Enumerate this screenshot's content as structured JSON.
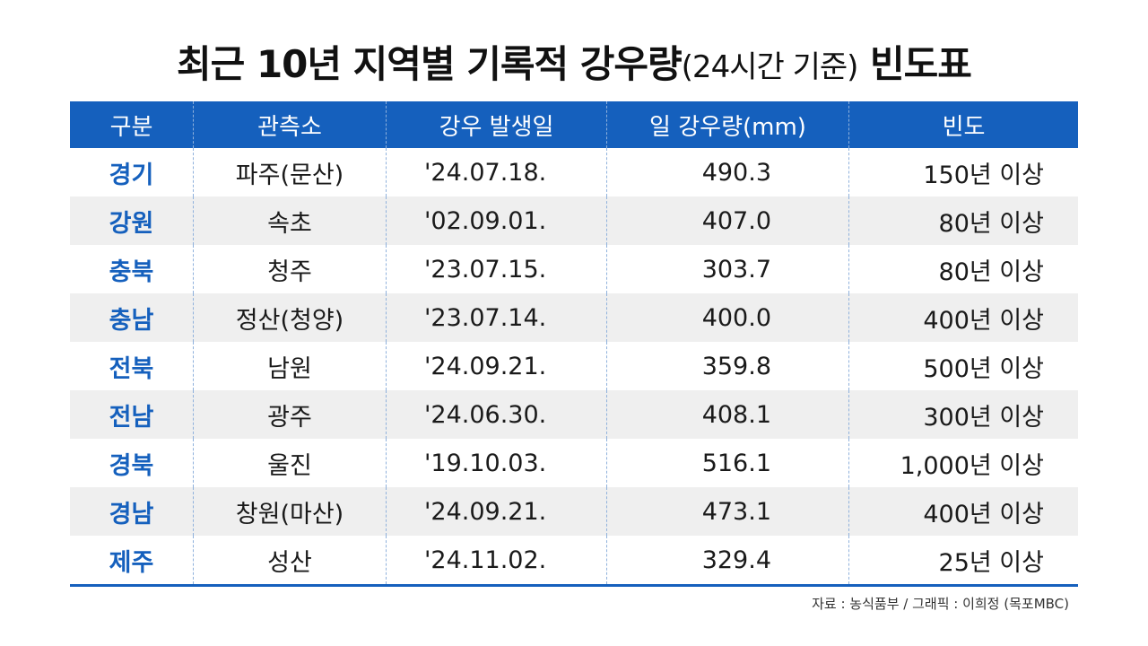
{
  "title": {
    "main": "최근 10년 지역별 기록적 강우량",
    "sub": "(24시간 기준)",
    "end": "빈도표"
  },
  "table": {
    "header": [
      "구분",
      "관측소",
      "강우 발생일",
      "일 강우량(mm)",
      "빈도"
    ],
    "rows": [
      [
        "경기",
        "파주(문산)",
        "'24.07.18.",
        "490.3",
        "150년 이상"
      ],
      [
        "강원",
        "속초",
        "'02.09.01.",
        "407.0",
        "80년 이상"
      ],
      [
        "충북",
        "청주",
        "'23.07.15.",
        "303.7",
        "80년 이상"
      ],
      [
        "충남",
        "정산(청양)",
        "'23.07.14.",
        "400.0",
        "400년 이상"
      ],
      [
        "전북",
        "남원",
        "'24.09.21.",
        "359.8",
        "500년 이상"
      ],
      [
        "전남",
        "광주",
        "'24.06.30.",
        "408.1",
        "300년 이상"
      ],
      [
        "경북",
        "울진",
        "'19.10.03.",
        "516.1",
        "1,000년 이상"
      ],
      [
        "경남",
        "창원(마산)",
        "'24.09.21.",
        "473.1",
        "400년 이상"
      ],
      [
        "제주",
        "성산",
        "'24.11.02.",
        "329.4",
        "25년 이상"
      ]
    ]
  },
  "source": "자료 : 농식품부 / 그래픽 : 이희정 (목포MBC)"
}
